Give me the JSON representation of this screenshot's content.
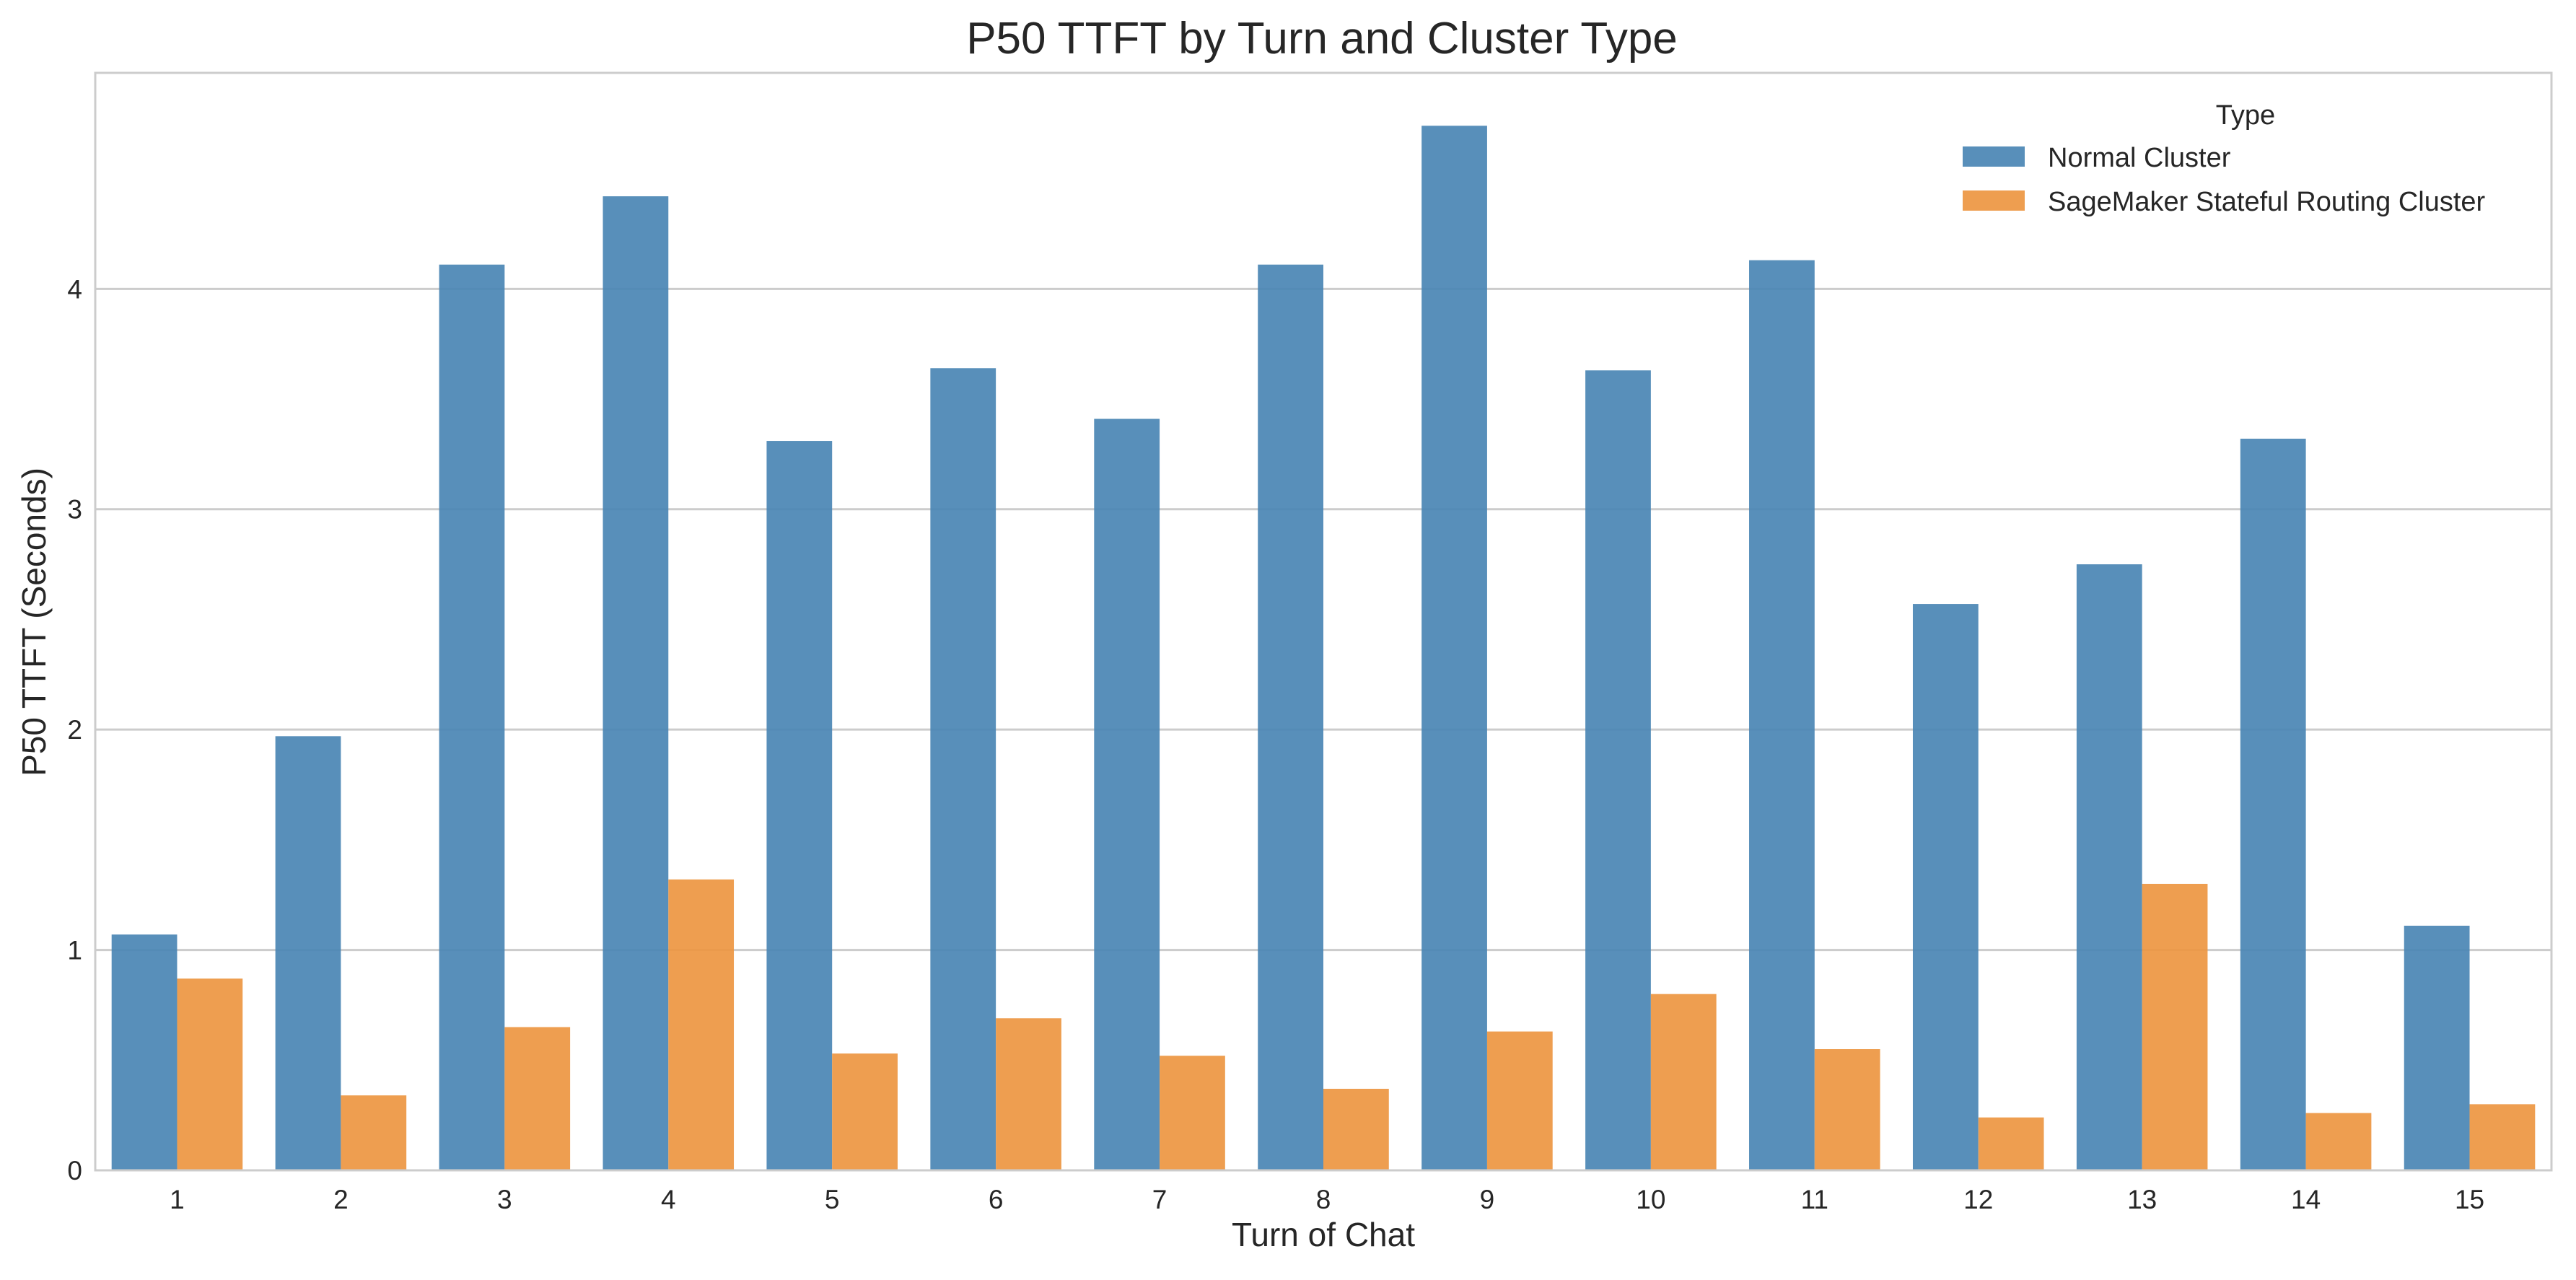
{
  "chart_data": {
    "type": "bar",
    "title": "P50 TTFT by Turn and Cluster Type",
    "xlabel": "Turn of Chat",
    "ylabel": "P50 TTFT (Seconds)",
    "categories": [
      "1",
      "2",
      "3",
      "4",
      "5",
      "6",
      "7",
      "8",
      "9",
      "10",
      "11",
      "12",
      "13",
      "14",
      "15"
    ],
    "series": [
      {
        "name": "Normal Cluster",
        "color": "#4a86b4",
        "values": [
          1.07,
          1.97,
          4.11,
          4.42,
          3.31,
          3.64,
          3.41,
          4.11,
          4.74,
          3.63,
          4.13,
          2.57,
          2.75,
          3.32,
          1.11
        ]
      },
      {
        "name": "SageMaker Stateful Routing Cluster",
        "color": "#ed9641",
        "values": [
          0.87,
          0.34,
          0.65,
          1.32,
          0.53,
          0.69,
          0.52,
          0.37,
          0.63,
          0.8,
          0.55,
          0.24,
          1.3,
          0.26,
          0.3
        ]
      }
    ],
    "ylim": [
      0,
      4.98
    ],
    "yticks": [
      0,
      1,
      2,
      3,
      4
    ],
    "grid": true,
    "legend": {
      "title": "Type",
      "position": "top-right"
    }
  }
}
